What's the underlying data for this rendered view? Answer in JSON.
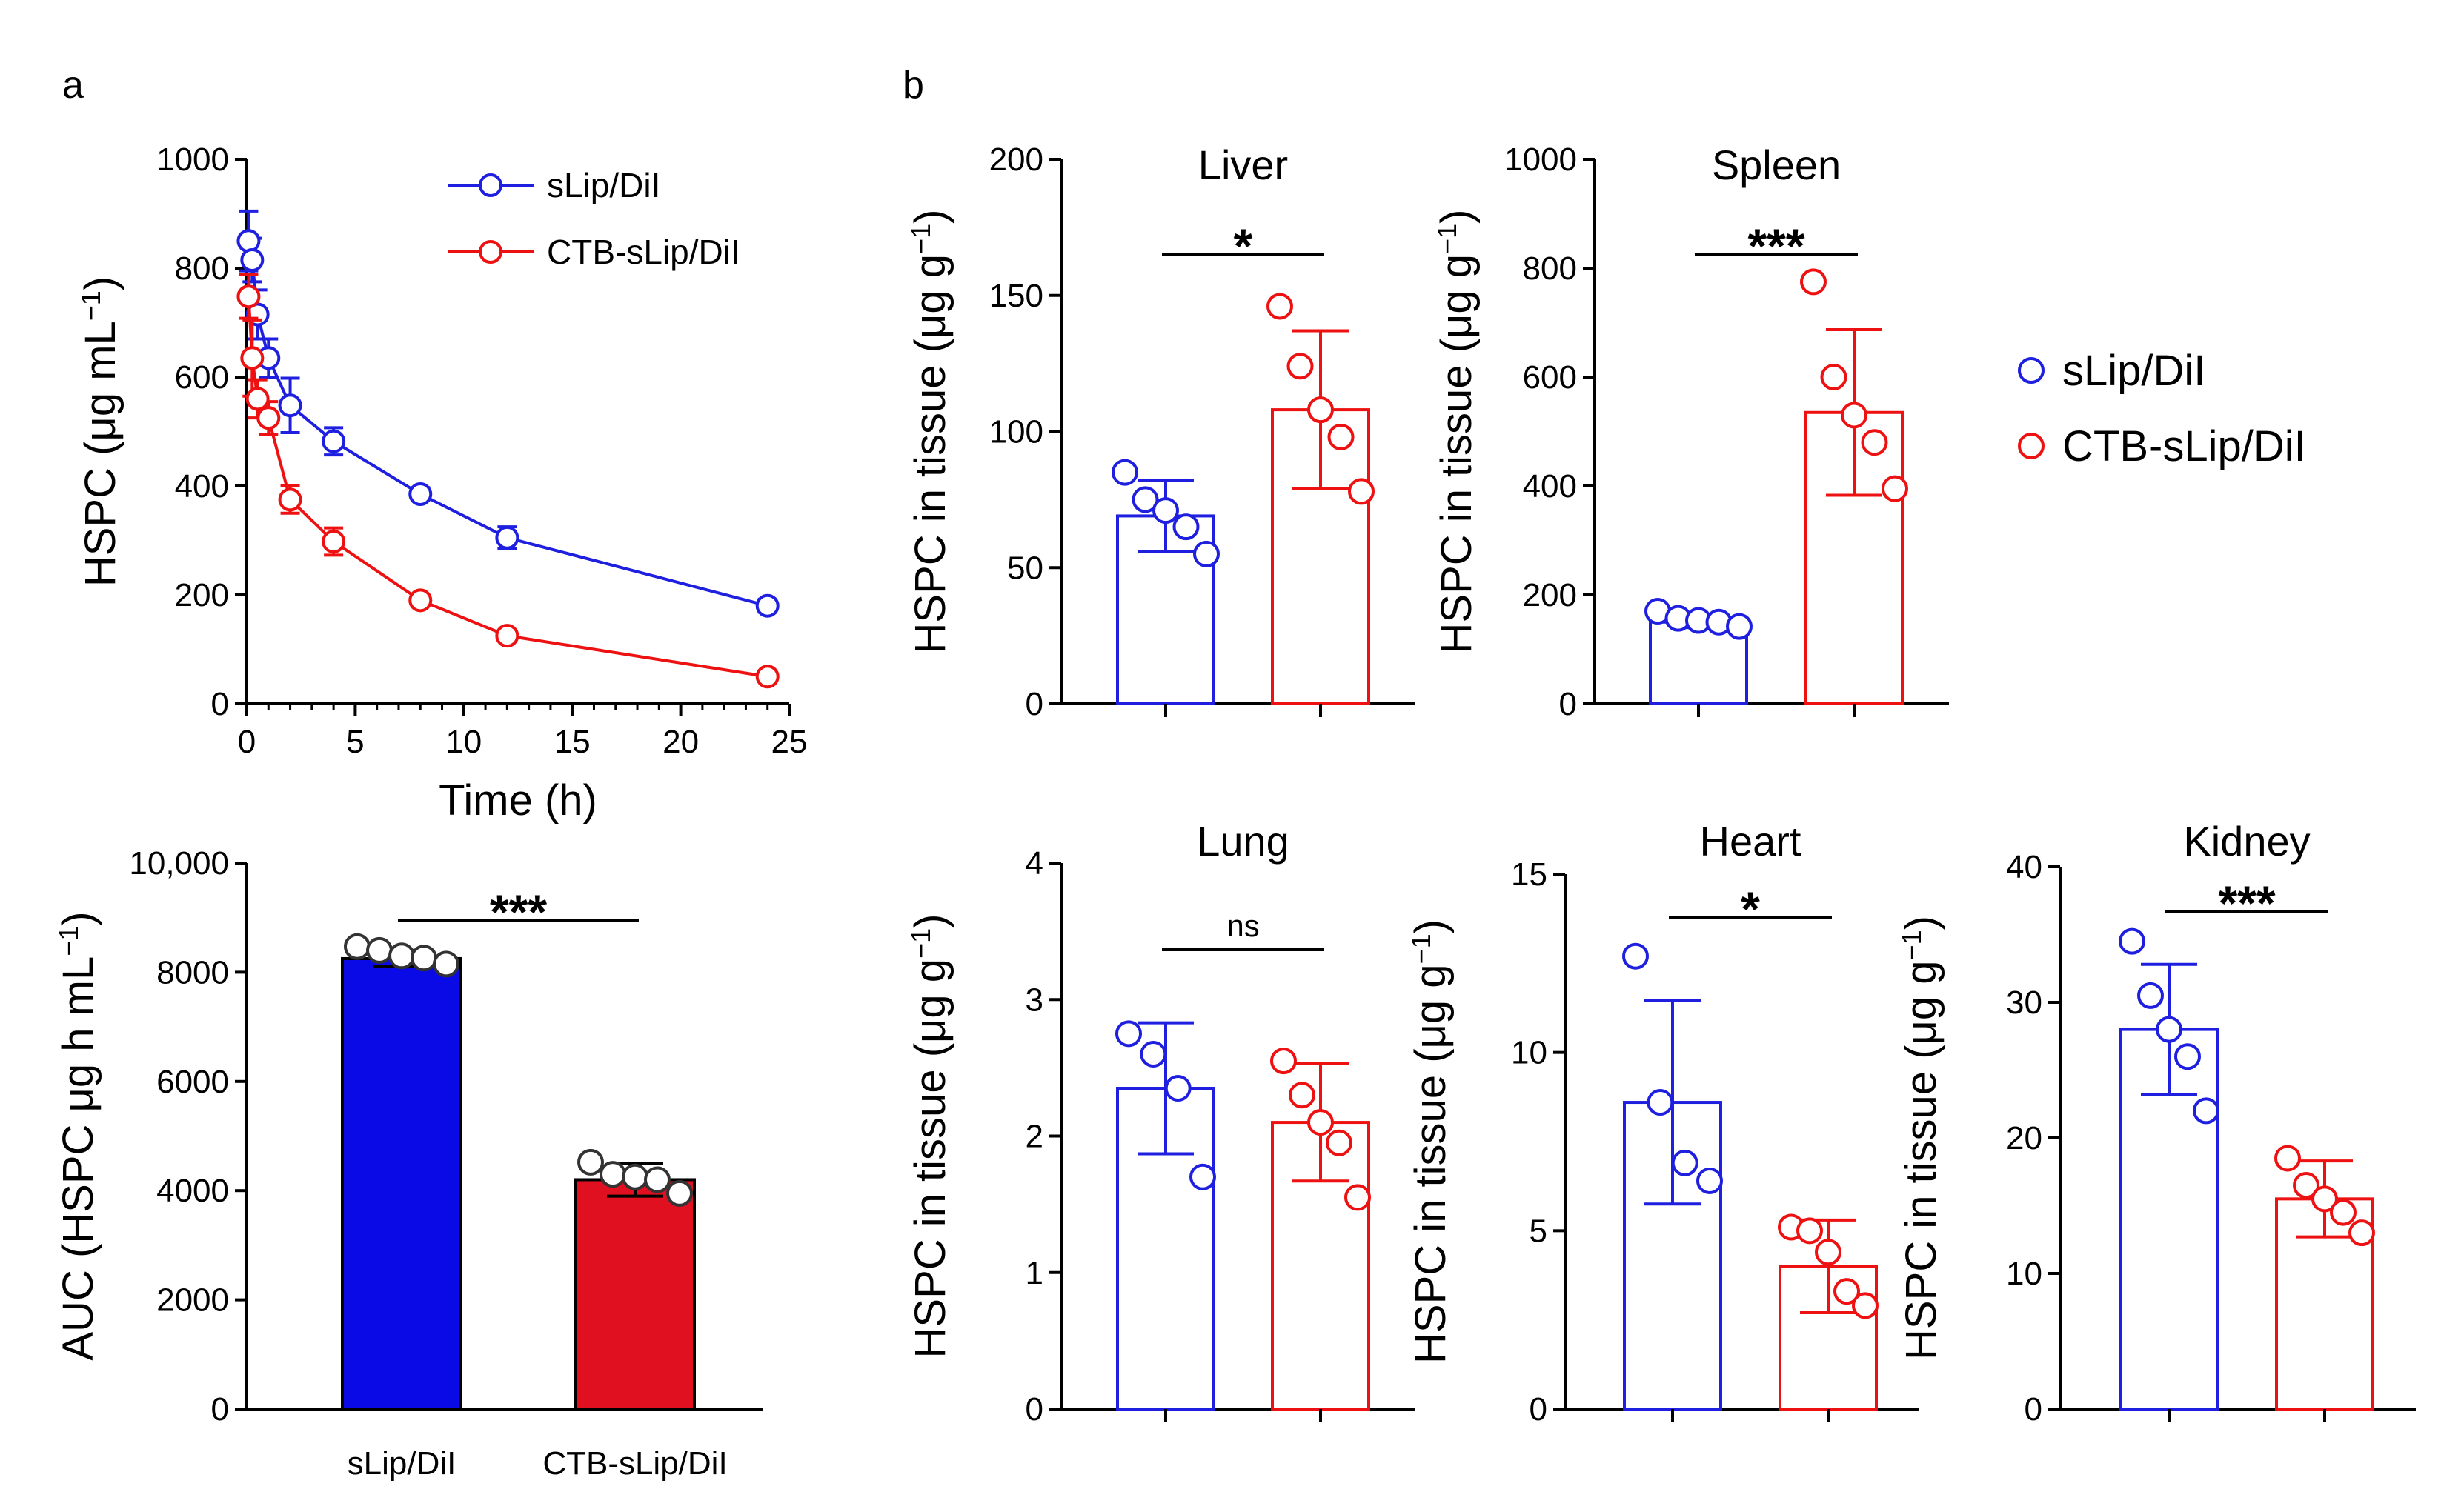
{
  "figure": {
    "panel_a_label": "a",
    "panel_b_label": "b"
  },
  "colors": {
    "blue": "#1f1fe0",
    "red": "#ee1111",
    "blue_fill": "#0a0ae6",
    "red_fill": "#e01020",
    "black": "#000000"
  },
  "chart_data": [
    {
      "id": "pk",
      "type": "line",
      "title": "",
      "xlabel": "Time (h)",
      "ylabel": "HSPC (μg mL",
      "ylabel_sup": "−1",
      "ylabel_close": ")",
      "xlim": [
        0,
        25
      ],
      "ylim": [
        0,
        1000
      ],
      "xticks": [
        "0",
        "5",
        "10",
        "15",
        "20",
        "25"
      ],
      "yticks": [
        "0",
        "200",
        "400",
        "600",
        "800",
        "1000"
      ],
      "legend_position": "top-right",
      "series": [
        {
          "name": "sLip/DiI",
          "color": "blue",
          "x": [
            0.083,
            0.25,
            0.5,
            1,
            2,
            4,
            8,
            12,
            24
          ],
          "y": [
            850,
            815,
            715,
            635,
            548,
            482,
            385,
            305,
            180
          ],
          "err": [
            55,
            40,
            45,
            35,
            50,
            25,
            12,
            20,
            12
          ]
        },
        {
          "name": "CTB-sLip/DiI",
          "color": "red",
          "x": [
            0.083,
            0.25,
            0.5,
            1,
            2,
            4,
            8,
            12,
            24
          ],
          "y": [
            748,
            635,
            560,
            525,
            375,
            298,
            190,
            125,
            50
          ],
          "err": [
            40,
            70,
            35,
            30,
            25,
            25,
            10,
            8,
            6
          ]
        }
      ]
    },
    {
      "id": "auc",
      "type": "bar",
      "ylabel": "AUC (HSPC μg h mL",
      "ylabel_sup": "−1",
      "ylabel_close": ")",
      "ylim": [
        0,
        10000
      ],
      "yticks": [
        "0",
        "2000",
        "4000",
        "6000",
        "8000",
        "10,000"
      ],
      "categories": [
        "sLip/DiI",
        "CTB-sLip/DiI"
      ],
      "values": [
        8250,
        4200
      ],
      "sd": [
        150,
        300
      ],
      "points": [
        [
          8470,
          8400,
          8300,
          8260,
          8150
        ],
        [
          4520,
          4300,
          4250,
          4200,
          3950
        ]
      ],
      "significance": "***",
      "filled": true
    },
    {
      "id": "liver",
      "type": "bar",
      "title": "Liver",
      "ylabel": "HSPC in tissue (μg g",
      "ylabel_sup": "−1",
      "ylabel_close": ")",
      "ylim": [
        0,
        200
      ],
      "yticks": [
        "0",
        "50",
        "100",
        "150",
        "200"
      ],
      "categories": [
        "sLip/DiI",
        "CTB-sLip/DiI"
      ],
      "values": [
        69,
        108
      ],
      "sd": [
        13,
        29
      ],
      "points": [
        [
          85,
          75,
          71,
          65,
          55
        ],
        [
          146,
          124,
          108,
          98,
          78
        ]
      ],
      "significance": "*"
    },
    {
      "id": "spleen",
      "type": "bar",
      "title": "Spleen",
      "ylabel": "HSPC in tissue (μg g",
      "ylabel_sup": "−1",
      "ylabel_close": ")",
      "ylim": [
        0,
        1000
      ],
      "yticks": [
        "0",
        "200",
        "400",
        "600",
        "800",
        "1000"
      ],
      "categories": [
        "sLip/DiI",
        "CTB-sLip/DiI"
      ],
      "values": [
        150,
        535
      ],
      "sd": [
        10,
        152
      ],
      "points": [
        [
          170,
          157,
          153,
          150,
          142
        ],
        [
          775,
          600,
          530,
          480,
          395
        ]
      ],
      "significance": "***"
    },
    {
      "id": "lung",
      "type": "bar",
      "title": "Lung",
      "ylabel": "HSPC in tissue (μg g",
      "ylabel_sup": "−1",
      "ylabel_close": ")",
      "ylim": [
        0,
        4
      ],
      "yticks": [
        "0",
        "1",
        "2",
        "3",
        "4"
      ],
      "categories": [
        "sLip/DiI",
        "CTB-sLip/DiI"
      ],
      "values": [
        2.35,
        2.1
      ],
      "sd": [
        0.48,
        0.43
      ],
      "points": [
        [
          2.75,
          2.6,
          2.35,
          1.7
        ],
        [
          2.55,
          2.3,
          2.1,
          1.95,
          1.55
        ]
      ],
      "significance": "ns"
    },
    {
      "id": "heart",
      "type": "bar",
      "title": "Heart",
      "ylabel": "HSPC in tissue (μg g",
      "ylabel_sup": "−1",
      "ylabel_close": ")",
      "ylim": [
        0,
        15
      ],
      "yticks": [
        "0",
        "5",
        "10",
        "15"
      ],
      "categories": [
        "sLip/DiI",
        "CTB-sLip/DiI"
      ],
      "values": [
        8.6,
        4.0
      ],
      "sd": [
        2.85,
        1.3
      ],
      "points": [
        [
          12.7,
          8.6,
          6.9,
          6.4
        ],
        [
          5.1,
          5.0,
          4.4,
          3.3,
          2.9
        ]
      ],
      "significance": "*"
    },
    {
      "id": "kidney",
      "type": "bar",
      "title": "Kidney",
      "ylabel": "HSPC in tissue (μg g",
      "ylabel_sup": "−1",
      "ylabel_close": ")",
      "ylim": [
        0,
        40
      ],
      "yticks": [
        "0",
        "10",
        "20",
        "30",
        "40"
      ],
      "categories": [
        "sLip/DiI",
        "CTB-sLip/DiI"
      ],
      "values": [
        28,
        15.5
      ],
      "sd": [
        4.8,
        2.8
      ],
      "points": [
        [
          34.5,
          30.5,
          28,
          26,
          22
        ],
        [
          18.5,
          16.5,
          15.5,
          14.5,
          13
        ]
      ],
      "significance": "***"
    }
  ],
  "legend_b": {
    "items": [
      "sLip/DiI",
      "CTB-sLip/DiI"
    ]
  }
}
